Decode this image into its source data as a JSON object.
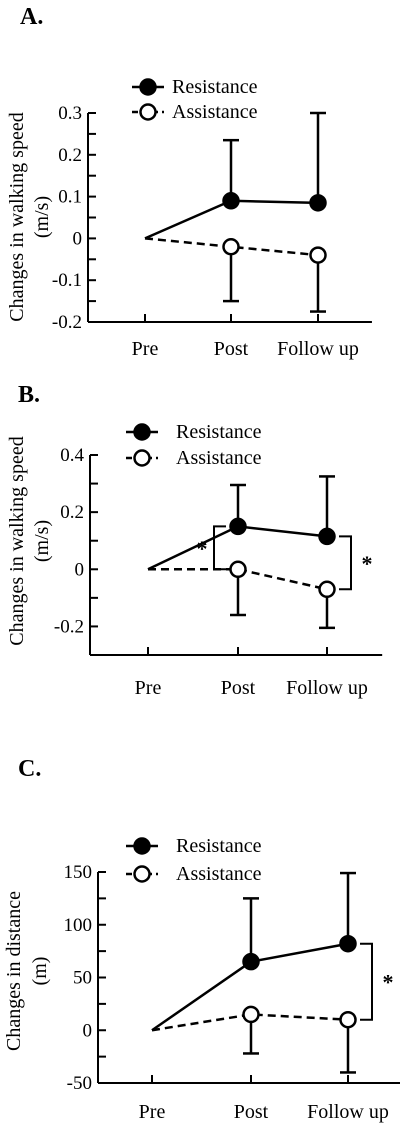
{
  "chart_data": [
    {
      "type": "line",
      "panel_label": "A.",
      "categories": [
        "Pre",
        "Post",
        "Follow up"
      ],
      "ylabel_lines": [
        "Changes in walking speed",
        "(m/s)"
      ],
      "ylim": [
        -0.2,
        0.3
      ],
      "y_ticks": [
        "0.3",
        "0.2",
        "0.1",
        "0",
        "-0.1",
        "-0.2"
      ],
      "legend": [
        "Resistance",
        "Assistance"
      ],
      "series": [
        {
          "name": "Resistance",
          "values": [
            0,
            0.09,
            0.085
          ],
          "err_up": [
            0,
            0.145,
            0.215
          ],
          "err_down": [
            0,
            0,
            0
          ]
        },
        {
          "name": "Assistance",
          "values": [
            0,
            -0.02,
            -0.04
          ],
          "err_up": [
            0,
            0,
            0
          ],
          "err_down": [
            0,
            0.13,
            0.135
          ]
        }
      ],
      "significance": []
    },
    {
      "type": "line",
      "panel_label": "B.",
      "categories": [
        "Pre",
        "Post",
        "Follow up"
      ],
      "ylabel_lines": [
        "Changes in walking speed",
        "(m/s)"
      ],
      "ylim": [
        -0.3,
        0.4
      ],
      "y_ticks": [
        "0.4",
        "0.2",
        "0",
        "-0.2"
      ],
      "legend": [
        "Resistance",
        "Assistance"
      ],
      "series": [
        {
          "name": "Resistance",
          "values": [
            0,
            0.15,
            0.115
          ],
          "err_up": [
            0,
            0.145,
            0.21
          ],
          "err_down": [
            0,
            0,
            0
          ]
        },
        {
          "name": "Assistance",
          "values": [
            0,
            0,
            -0.07
          ],
          "err_up": [
            0,
            0,
            0
          ],
          "err_down": [
            0,
            0.16,
            0.135
          ]
        }
      ],
      "significance": [
        {
          "category": 1,
          "side": "left",
          "label": "*"
        },
        {
          "category": 2,
          "side": "right",
          "label": "*"
        }
      ]
    },
    {
      "type": "line",
      "panel_label": "C.",
      "categories": [
        "Pre",
        "Post",
        "Follow up"
      ],
      "ylabel_lines": [
        "Changes in distance",
        "(m)"
      ],
      "ylim": [
        -50,
        150
      ],
      "y_ticks": [
        "150",
        "100",
        "50",
        "0",
        "-50"
      ],
      "legend": [
        "Resistance",
        "Assistance"
      ],
      "series": [
        {
          "name": "Resistance",
          "values": [
            0,
            65,
            82
          ],
          "err_up": [
            0,
            60,
            67
          ],
          "err_down": [
            0,
            0,
            0
          ]
        },
        {
          "name": "Assistance",
          "values": [
            0,
            15,
            10
          ],
          "err_up": [
            0,
            0,
            0
          ],
          "err_down": [
            0,
            37,
            50
          ]
        }
      ],
      "significance": [
        {
          "category": 2,
          "side": "right",
          "label": "*"
        }
      ]
    }
  ]
}
